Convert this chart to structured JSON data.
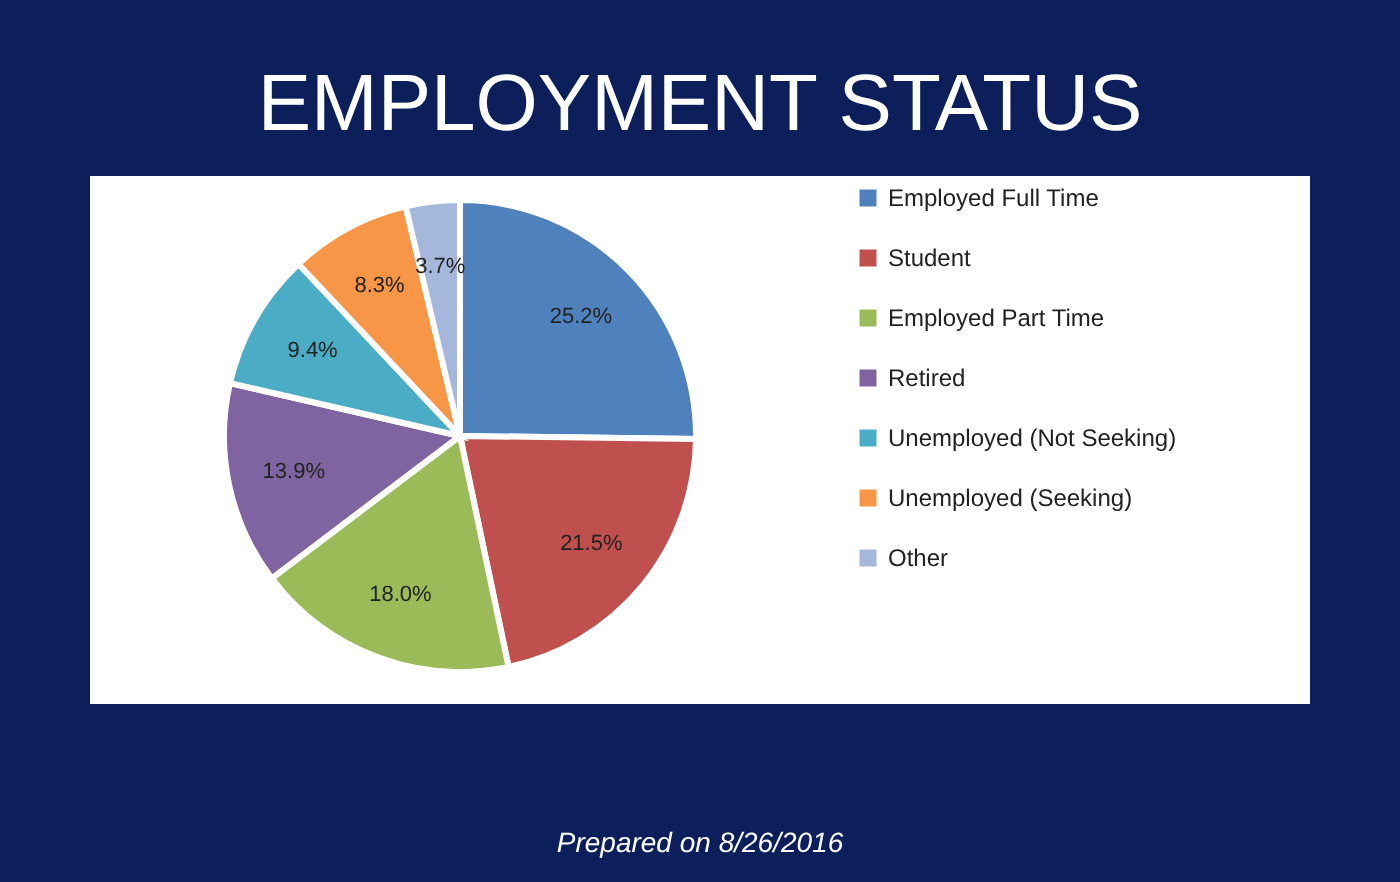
{
  "chart_data": {
    "type": "pie",
    "title": "EMPLOYMENT STATUS",
    "categories": [
      "Employed Full Time",
      "Student",
      "Employed Part Time",
      "Retired",
      "Unemployed (Not Seeking)",
      "Unemployed (Seeking)",
      "Other"
    ],
    "values": [
      25.2,
      21.5,
      18.0,
      13.9,
      9.4,
      8.3,
      3.7
    ],
    "value_labels": [
      "25.2%",
      "21.5%",
      "18.0%",
      "13.9%",
      "9.4%",
      "8.3%",
      "3.7%"
    ],
    "colors": [
      "#4f81bd",
      "#c0504d",
      "#9bbb59",
      "#8064a2",
      "#4bacc6",
      "#f79646",
      "#a5b8dc"
    ],
    "legend": "right",
    "annotations": [
      "Prepared on 8/26/2016"
    ]
  }
}
